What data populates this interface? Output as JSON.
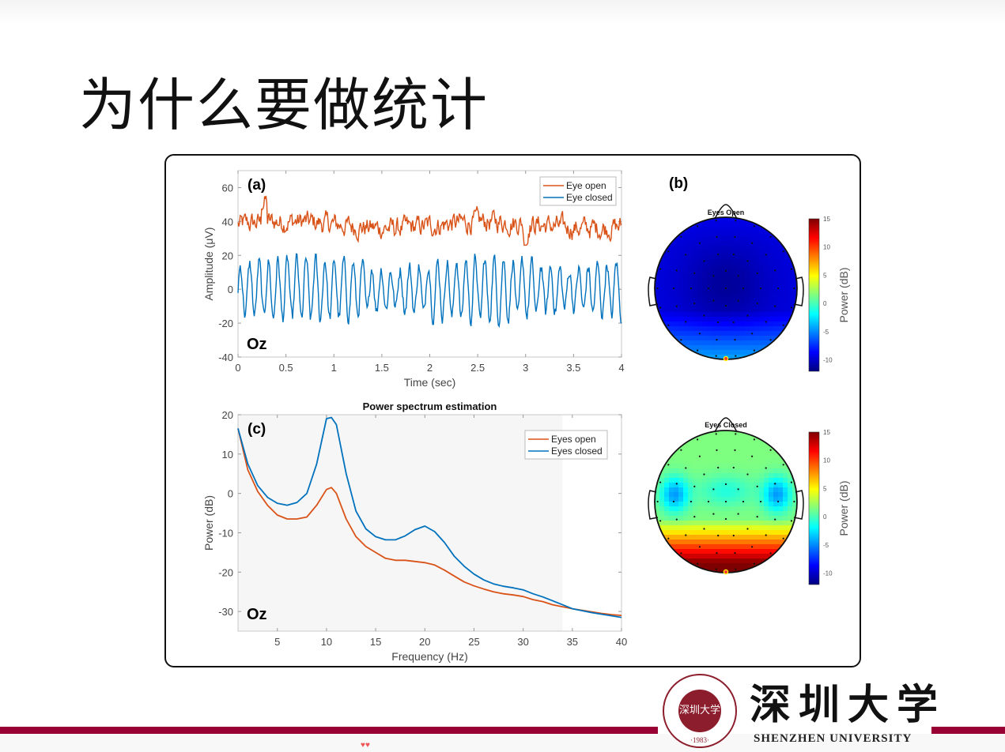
{
  "slide": {
    "title": "为什么要做统计"
  },
  "footer": {
    "university_cn": "深圳大学",
    "university_en": "SHENZHEN UNIVERSITY",
    "seal_text": "深圳大学",
    "seal_year": "·1983·",
    "accent_color": "#990033",
    "decoration": "hearts-icon"
  },
  "chart_data": [
    {
      "id": "a",
      "panel_label": "(a)",
      "type": "line",
      "title": "",
      "xlabel": "Time (sec)",
      "ylabel": "Amplitude (μV)",
      "xlim": [
        0,
        4
      ],
      "ylim": [
        -40,
        70
      ],
      "xticks": [
        0,
        0.5,
        1,
        1.5,
        2,
        2.5,
        3,
        3.5,
        4
      ],
      "xtick_labels": [
        "0",
        "0.5",
        "1",
        "1.5",
        "2",
        "2.5",
        "3",
        "3.5",
        "4"
      ],
      "yticks": [
        -40,
        -20,
        0,
        20,
        40,
        60
      ],
      "annotation": "Oz",
      "legend_position": "northeast",
      "grid": false,
      "series": [
        {
          "name": "Eye open",
          "color": "#d95319",
          "mean": 38,
          "spread": 5,
          "note": "noisy trace around 38 μV, range ~27–55"
        },
        {
          "name": "Eye closed",
          "color": "#0072bd",
          "mean": 0,
          "spread": 18,
          "note": "~10 Hz alpha oscillation, range ~-37–29"
        }
      ]
    },
    {
      "id": "b",
      "panel_label": "(b)",
      "type": "heatmap",
      "subplots": [
        {
          "title": "Eyes Open",
          "description": "topographic map, predominantly blue (-8 to -12 dB), cyan at occipital (-4 dB)"
        },
        {
          "title": "Eyes Closed",
          "description": "topographic map, cyan/green frontal (0 to 2 dB), blue temporal (-5 dB), red/dark red occipital (10 to 15 dB)"
        }
      ],
      "colorbar": {
        "label": "Power (dB)",
        "ticks": [
          15,
          10,
          5,
          0,
          -5,
          -10
        ],
        "range": [
          -12,
          15
        ],
        "colormap": "jet"
      }
    },
    {
      "id": "c",
      "panel_label": "(c)",
      "type": "line",
      "title": "Power spectrum estimation",
      "xlabel": "Frequency (Hz)",
      "ylabel": "Power (dB)",
      "xlim": [
        1,
        40
      ],
      "ylim": [
        -35,
        20
      ],
      "xticks": [
        5,
        10,
        15,
        20,
        25,
        30,
        35,
        40
      ],
      "yticks": [
        -30,
        -20,
        -10,
        0,
        10,
        20
      ],
      "annotation": "Oz",
      "legend_position": "northeast",
      "grid": false,
      "shaded_region": [
        1,
        34
      ],
      "x": [
        1,
        2,
        3,
        4,
        5,
        6,
        7,
        8,
        9,
        10,
        10.5,
        11,
        12,
        13,
        14,
        15,
        16,
        17,
        18,
        19,
        20,
        21,
        22,
        23,
        24,
        25,
        26,
        27,
        28,
        29,
        30,
        31,
        32,
        33,
        34,
        35,
        36,
        37,
        38,
        39,
        40
      ],
      "series": [
        {
          "name": "Eyes open",
          "color": "#d95319",
          "values": [
            16.5,
            6,
            0.5,
            -3,
            -5.5,
            -6.5,
            -6.5,
            -6,
            -3,
            1,
            1.5,
            0,
            -6.5,
            -11,
            -13.5,
            -15,
            -16.5,
            -17,
            -17,
            -17.3,
            -17.6,
            -18.2,
            -19.5,
            -21,
            -22.5,
            -23.5,
            -24.3,
            -25,
            -25.5,
            -25.8,
            -26.2,
            -27,
            -27.5,
            -28.3,
            -28.8,
            -29.3,
            -29.7,
            -30.1,
            -30.5,
            -30.8,
            -31
          ]
        },
        {
          "name": "Eyes closed",
          "color": "#0072bd",
          "values": [
            16.5,
            7.5,
            2,
            -1,
            -2.5,
            -3,
            -2.3,
            0,
            7.5,
            19,
            19.3,
            17.5,
            5,
            -4.5,
            -9,
            -11,
            -11.8,
            -11.8,
            -10.8,
            -9.2,
            -8.3,
            -9.7,
            -12.5,
            -16,
            -18.5,
            -20.5,
            -22,
            -23,
            -23.6,
            -24,
            -24.5,
            -25.5,
            -26.3,
            -27.3,
            -28.3,
            -29.3,
            -29.8,
            -30.3,
            -30.7,
            -31.1,
            -31.5
          ]
        }
      ]
    }
  ]
}
